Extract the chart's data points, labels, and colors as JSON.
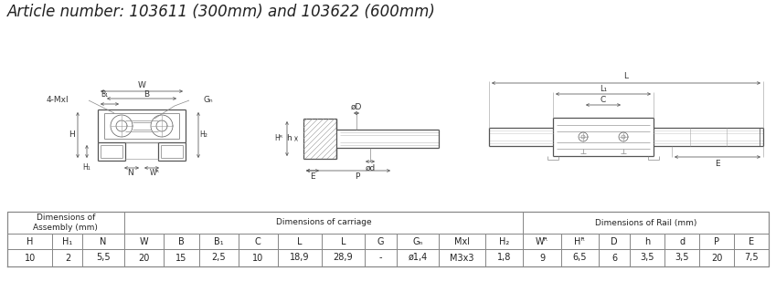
{
  "title": "Article number: 103611 (300mm) and 103622 (600mm)",
  "title_fontsize": 12,
  "title_style": "italic",
  "bg_color": "#ffffff",
  "table_headers_row1": [
    "Dimensions of\nAssembly (mm)",
    "Dimensions of carriage",
    "Dimensions of Rail (mm)"
  ],
  "table_headers_row2": [
    "H",
    "H₁",
    "N",
    "W",
    "B",
    "B₁",
    "C",
    "L",
    "L",
    "G",
    "Gₙ",
    "Mxl",
    "H₂",
    "Wᴿ",
    "Hᴿ",
    "D",
    "h",
    "d",
    "P",
    "E"
  ],
  "table_data": [
    "10",
    "2",
    "5,5",
    "20",
    "15",
    "2,5",
    "10",
    "18,9",
    "28,9",
    "-",
    "ø1,4",
    "M3x3",
    "1,8",
    "9",
    "6,5",
    "6",
    "3,5",
    "3,5",
    "20",
    "7,5"
  ],
  "col_props": [
    0.6,
    0.4,
    0.55,
    0.52,
    0.48,
    0.52,
    0.52,
    0.58,
    0.58,
    0.42,
    0.56,
    0.62,
    0.5,
    0.5,
    0.5,
    0.42,
    0.46,
    0.46,
    0.46,
    0.46
  ],
  "group_col_ends": [
    3,
    13,
    20
  ],
  "line_color": "#555555",
  "table_border_color": "#888888",
  "font_size_table": 7.0,
  "lw_main": 0.9,
  "lw_thin": 0.55,
  "lw_dim": 0.6
}
